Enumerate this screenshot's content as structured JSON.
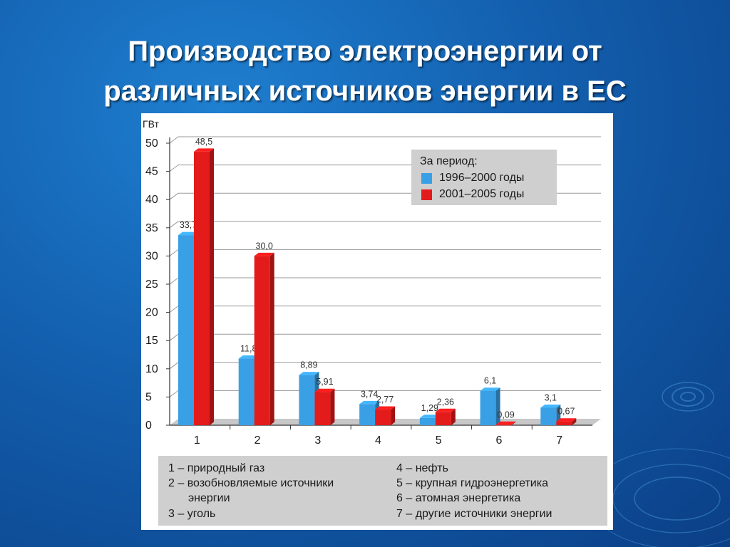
{
  "slide": {
    "title_lines": [
      "Производство электроэнергии от",
      "различных источников энергии в ЕС"
    ],
    "background_color": "#135fae"
  },
  "chart_data": {
    "type": "bar",
    "y_unit": "ГВт",
    "ylim": [
      0,
      50
    ],
    "yticks": [
      "0",
      "5",
      "10",
      "15",
      "20",
      "25",
      "30",
      "35",
      "40",
      "45",
      "50"
    ],
    "categories": [
      "1",
      "2",
      "3",
      "4",
      "5",
      "6",
      "7"
    ],
    "grid": true,
    "legend_placement": "top-right",
    "legend_title": "За период:",
    "series": [
      {
        "name": "1996–2000 годы",
        "color": "#3aa0e6",
        "values": [
          33.7,
          11.8,
          8.89,
          3.74,
          1.29,
          6.1,
          3.1
        ],
        "labels": [
          "33,7",
          "11,8",
          "8,89",
          "3,74",
          "1,29",
          "6,1",
          "3,1"
        ]
      },
      {
        "name": "2001–2005 годы",
        "color": "#e31b1b",
        "values": [
          48.5,
          30.0,
          5.91,
          2.77,
          2.36,
          0.09,
          0.67
        ],
        "labels": [
          "48,5",
          "30,0",
          "5,91",
          "2,77",
          "2,36",
          "0,09",
          "0,67"
        ]
      }
    ],
    "category_key": [
      [
        "1 – природный газ"
      ],
      [
        "2 – возобновляемые источники",
        "энергии"
      ],
      [
        "3 – уголь"
      ],
      [
        "4 – нефть"
      ],
      [
        "5 – крупная гидроэнергетика"
      ],
      [
        "6 – атомная энергетика"
      ],
      [
        "7 – другие источники энергии"
      ]
    ]
  }
}
